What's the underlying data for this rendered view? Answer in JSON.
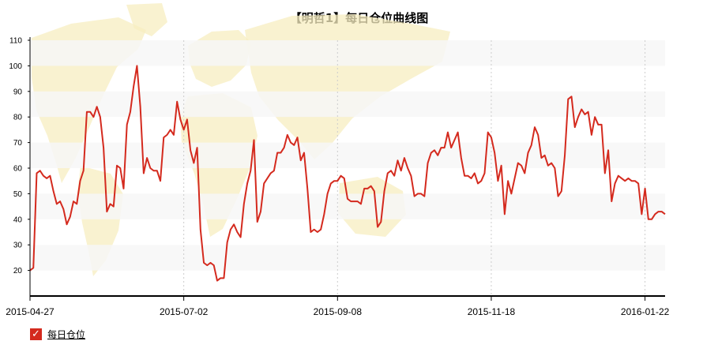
{
  "title": "【明哲1】每日仓位曲线图",
  "legend": {
    "checkbox_glyph": "✓",
    "label": "每日仓位"
  },
  "colors": {
    "line": "#d42a1e",
    "band": "#f7f7f7",
    "grid": "#cccccc",
    "map": "#f7edc0"
  },
  "chart_data": {
    "type": "line",
    "title": "【明哲1】每日仓位曲线图",
    "xlabel": "",
    "ylabel": "",
    "ylim": [
      10,
      110
    ],
    "yticks": [
      20,
      30,
      40,
      50,
      60,
      70,
      80,
      90,
      100,
      110
    ],
    "x_tick_labels": [
      "2015-04-27",
      "2015-07-02",
      "2015-09-08",
      "2015-11-18",
      "2016-01-22"
    ],
    "x_tick_index": [
      0,
      46,
      92,
      138,
      184
    ],
    "grid": "vertical dotted at date ticks, alternating horizontal bands",
    "legend_position": "bottom-left",
    "series": [
      {
        "name": "每日仓位",
        "values": [
          20,
          21,
          58,
          59,
          57,
          56,
          57,
          51,
          46,
          47,
          44,
          38,
          41,
          47,
          46,
          55,
          59,
          82,
          82,
          80,
          84,
          80,
          68,
          43,
          46,
          45,
          61,
          60,
          52,
          77,
          82,
          92,
          100,
          84,
          58,
          64,
          60,
          59,
          59,
          55,
          72,
          73,
          75,
          73,
          86,
          79,
          75,
          79,
          67,
          62,
          68,
          36,
          23,
          22,
          23,
          22,
          16,
          17,
          17,
          31,
          36,
          38,
          35,
          33,
          46,
          54,
          59,
          71,
          39,
          43,
          54,
          56,
          58,
          59,
          66,
          66,
          68,
          73,
          70,
          69,
          72,
          63,
          66,
          52,
          35,
          36,
          35,
          36,
          42,
          50,
          54,
          55,
          55,
          57,
          56,
          48,
          47,
          47,
          47,
          46,
          52,
          52,
          53,
          51,
          37,
          39,
          51,
          58,
          59,
          57,
          63,
          59,
          64,
          60,
          57,
          49,
          50,
          50,
          49,
          62,
          66,
          67,
          65,
          68,
          68,
          74,
          68,
          71,
          74,
          64,
          57,
          57,
          56,
          58,
          54,
          55,
          58,
          74,
          72,
          66,
          55,
          61,
          42,
          55,
          50,
          56,
          62,
          61,
          58,
          66,
          69,
          76,
          73,
          64,
          65,
          61,
          62,
          60,
          49,
          51,
          65,
          87,
          88,
          76,
          80,
          83,
          81,
          82,
          73,
          80,
          77,
          77,
          58,
          67,
          47,
          54,
          57,
          56,
          55,
          56,
          55,
          55,
          54,
          42,
          52,
          40,
          40,
          42,
          43,
          43,
          42
        ]
      }
    ]
  }
}
